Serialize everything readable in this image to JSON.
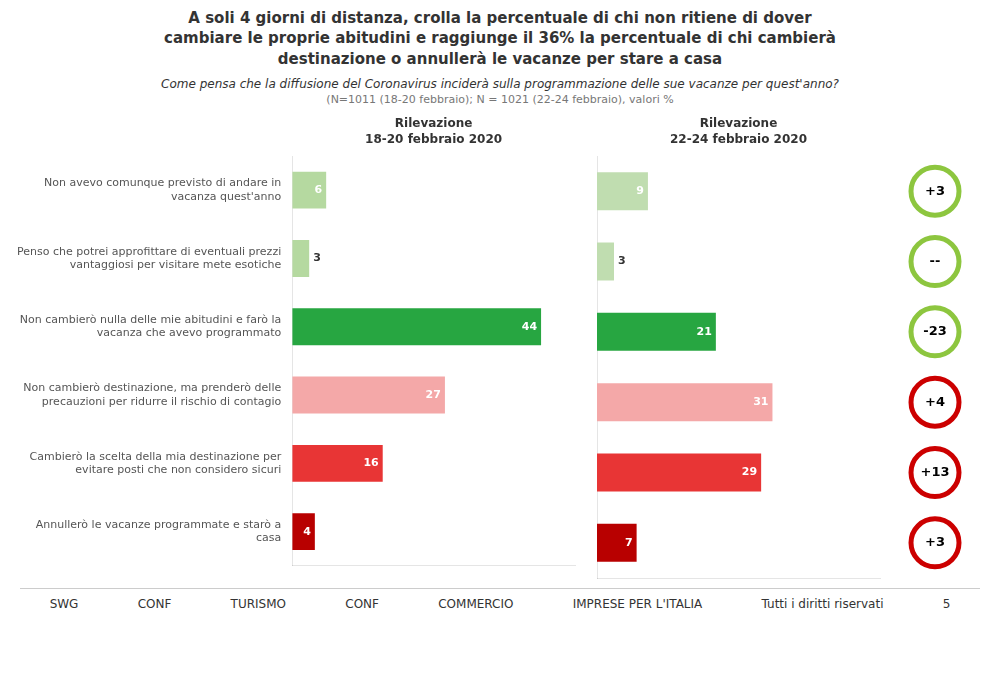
{
  "chart_data": {
    "type": "bar",
    "orientation": "horizontal",
    "title": "A soli 4 giorni di distanza, crolla la percentuale di chi non ritiene di dover\ncambiare le proprie abitudini e raggiunge il 36% la percentuale di chi cambierà\ndestinazione o annullerà le vacanze per stare a casa",
    "subtitle": [
      "Come pensa che la diffusione del Coronavirus inciderà sulla programmazione delle sue vacanze per quest'anno?",
      "(N=1011 (18-20 febbraio); N = 1021 (22-24 febbraio), valori %"
    ],
    "categories": [
      "Non avevo comunque previsto di andare in\nvacanza quest'anno",
      "Penso che potrei approfittare di eventuali prezzi\nvantaggiosi per visitare mete esotiche",
      "Non cambierò nulla delle mie abitudini e farò la\nvacanza che avevo programmato",
      "Non cambierò destinazione, ma prenderò delle\nprecauzioni per ridurre il rischio di contagio",
      "Cambierò la scelta della mia destinazione per\nevitare posti che non considero sicuri",
      "Annullerò le vacanze programmate e starò a\ncasa"
    ],
    "series": [
      {
        "name": "Rilevazione\n18-20 febbraio 2020",
        "colors": [
          "#b5d9a0",
          "#b5d9a0",
          "#27a641",
          "#f4a8a8",
          "#e83535",
          "#b80000"
        ],
        "values": [
          6,
          3,
          44,
          27,
          16,
          4
        ]
      },
      {
        "name": "Rilevazione\n22-24 febbraio 2020",
        "colors": [
          "#c0ddb0",
          "#c0ddb0",
          "#27a641",
          "#f4a8a8",
          "#e83535",
          "#b80000"
        ],
        "values": [
          9,
          3,
          21,
          31,
          29,
          7
        ]
      }
    ],
    "xlim": [
      0,
      50
    ],
    "tick_labels": "y",
    "grid": false,
    "data_labels": true,
    "annotations": [
      {
        "text": "+3",
        "color": "#8dc63f"
      },
      {
        "text": "--",
        "color": "#8dc63f"
      },
      {
        "text": "-23",
        "color": "#8dc63f"
      },
      {
        "text": "+4",
        "color": "#cc0000"
      },
      {
        "text": "+13",
        "color": "#cc0000"
      },
      {
        "text": "+3",
        "color": "#cc0000"
      }
    ],
    "footer": [
      "SWG",
      "CONF",
      "TURISMO",
      "CONF",
      "COMMERCIO",
      "IMPRESE PER L'ITALIA",
      "Tutti i diritti riservati",
      "5"
    ]
  }
}
